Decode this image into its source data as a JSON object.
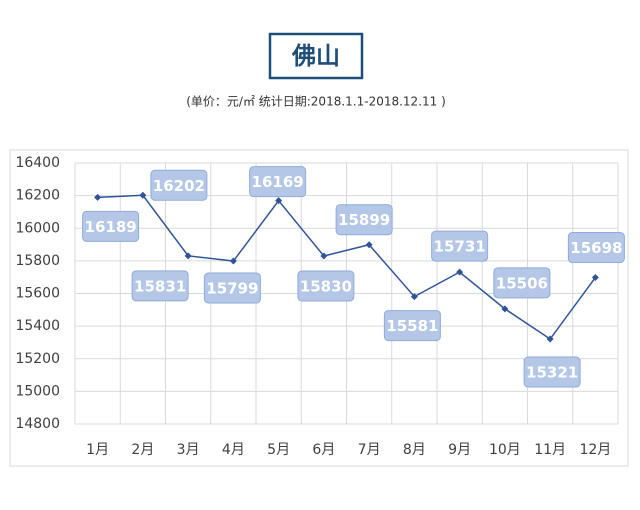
{
  "chart_data": {
    "type": "line",
    "title": "佛山",
    "subtitle": "(单价：元/㎡ 统计日期:2018.1.1-2018.12.11 )",
    "categories": [
      "1月",
      "2月",
      "3月",
      "4月",
      "5月",
      "6月",
      "7月",
      "8月",
      "9月",
      "10月",
      "11月",
      "12月"
    ],
    "values": [
      16189,
      16202,
      15831,
      15799,
      16169,
      15830,
      15899,
      15581,
      15731,
      15506,
      15321,
      15698
    ],
    "color": "#2f5597",
    "ylim": [
      14800,
      16400
    ],
    "yticks": [
      14800,
      15000,
      15200,
      15400,
      15600,
      15800,
      16000,
      16200,
      16400
    ],
    "grid": true
  }
}
